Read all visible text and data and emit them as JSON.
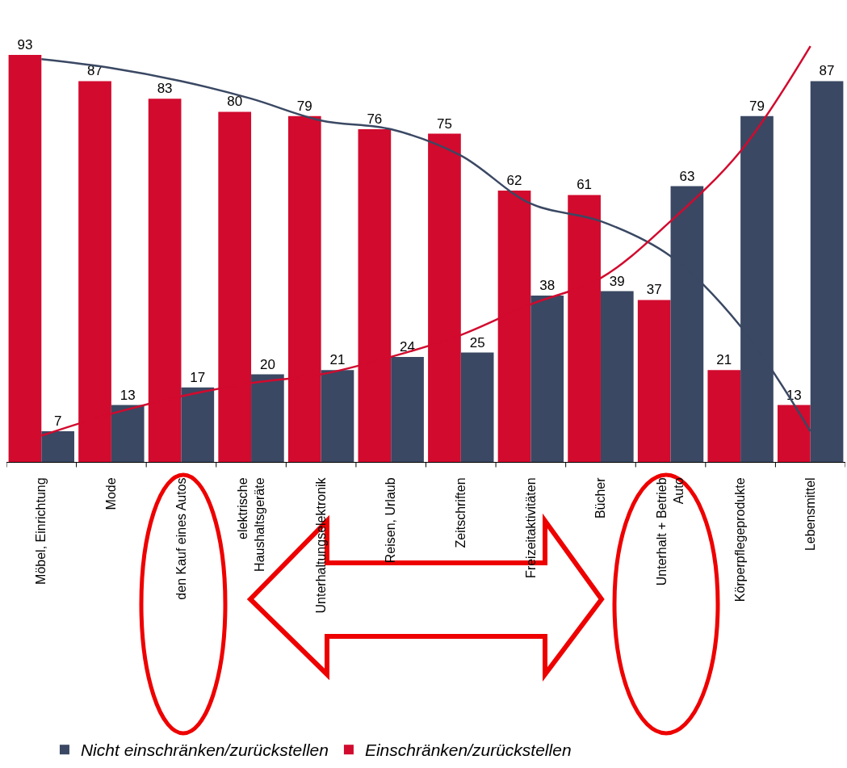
{
  "chart_data": {
    "type": "bar",
    "categories": [
      "Möbel, Einrichtung",
      "Mode",
      "den Kauf eines Autos",
      "elektrische\nHaushaltsgeräte",
      "Unterhaltungselektronik",
      "Reisen, Urlaub",
      "Zeitschriften",
      "Freizeitaktivitäten",
      "Bücher",
      "Unterhalt + Betrieb\nAuto",
      "Körperpflegeprodukte",
      "Lebensmittel"
    ],
    "series": [
      {
        "name": "Einschränken/zurückstellen",
        "color": "#d20a2e",
        "values": [
          93,
          87,
          83,
          80,
          79,
          76,
          75,
          62,
          61,
          37,
          21,
          13
        ],
        "value_labels": [
          "93",
          "87",
          "83",
          "80",
          "79",
          "76",
          "75",
          "62",
          "61",
          "37",
          "21",
          "13"
        ]
      },
      {
        "name": "Nicht einschränken/zurückstellen",
        "color": "#3a4863",
        "values": [
          7,
          13,
          17,
          20,
          21,
          24,
          25,
          38,
          39,
          63,
          79,
          87
        ],
        "value_labels": [
          "7",
          "13",
          "17",
          "20",
          "21",
          "24",
          "25",
          "38",
          "39",
          "63",
          "79",
          "87"
        ]
      },
      {
        "type": "line",
        "color": "#3a4863",
        "values": [
          92,
          90,
          87,
          83,
          78,
          76,
          70,
          59,
          55,
          47,
          31,
          7
        ]
      },
      {
        "type": "line",
        "color": "#d20a2e",
        "values": [
          6,
          11,
          15,
          18,
          20,
          24,
          29,
          36,
          42,
          55,
          71,
          95
        ]
      }
    ],
    "tick_labels": "x",
    "grid": false,
    "legend": "bottom",
    "line_style": "solid",
    "marker": "none"
  }
}
